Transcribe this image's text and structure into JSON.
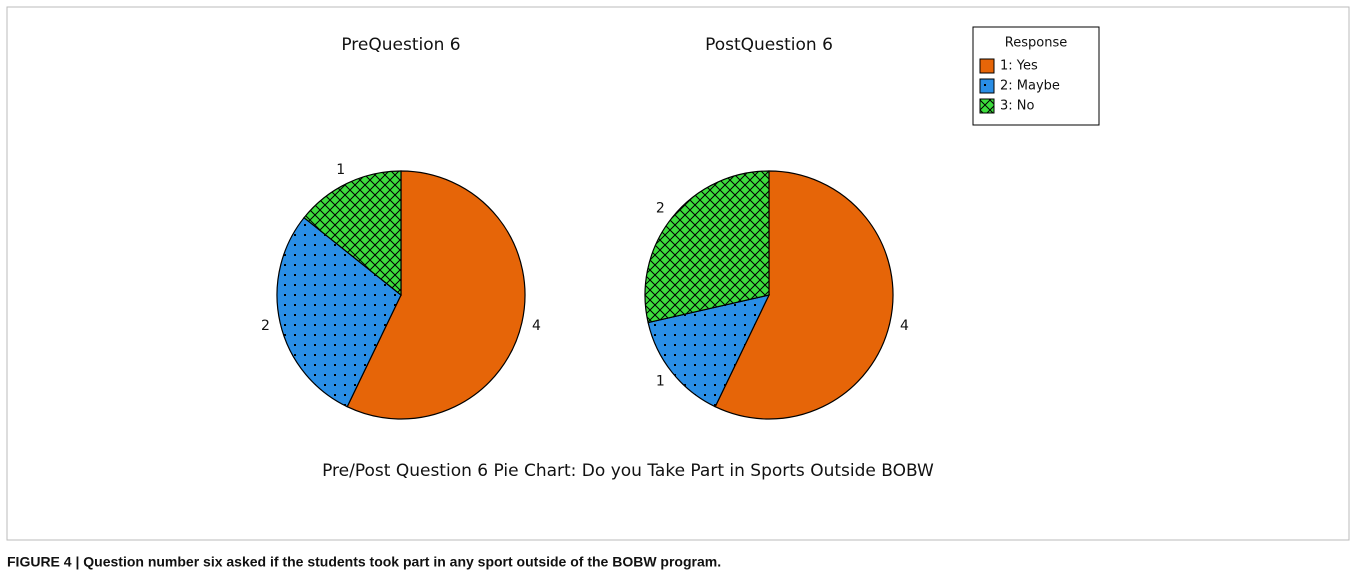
{
  "figure_title": "Pre/Post Question 6 Pie Chart: Do you Take Part in Sports Outside BOBW",
  "legend_title": "Response",
  "caption": "FIGURE 4 | Question number six asked if the students took part in any sport outside of the BOBW program.",
  "chart_data": [
    {
      "type": "pie",
      "title": "PreQuestion 6",
      "categories": [
        "1: Yes",
        "2: Maybe",
        "3: No"
      ],
      "values": [
        4,
        2,
        1
      ],
      "colors": [
        "#e66508",
        "#2a8ee6",
        "#3ddc3d"
      ],
      "patterns": [
        "solid",
        "dots",
        "crosshatch"
      ]
    },
    {
      "type": "pie",
      "title": "PostQuestion 6",
      "categories": [
        "1: Yes",
        "2: Maybe",
        "3: No"
      ],
      "values": [
        4,
        1,
        2
      ],
      "colors": [
        "#e66508",
        "#2a8ee6",
        "#3ddc3d"
      ],
      "patterns": [
        "solid",
        "dots",
        "crosshatch"
      ]
    }
  ]
}
